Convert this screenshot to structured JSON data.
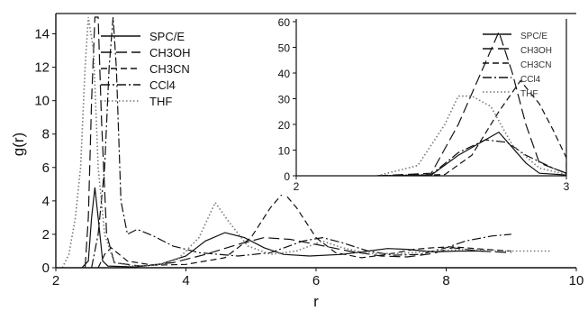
{
  "chart_data": [
    {
      "type": "line",
      "xlabel": "r",
      "ylabel": "g(r)",
      "xlim": [
        2,
        10
      ],
      "ylim": [
        0,
        15
      ],
      "xticks": [
        2,
        4,
        6,
        8,
        10
      ],
      "yticks": [
        0,
        2,
        4,
        6,
        8,
        10,
        12,
        14
      ],
      "legend_position": "top-left",
      "series": [
        {
          "name": "SPC/E",
          "style": "solid",
          "points": [
            [
              2.4,
              0
            ],
            [
              2.5,
              0.4
            ],
            [
              2.55,
              3
            ],
            [
              2.6,
              4.8
            ],
            [
              2.65,
              3
            ],
            [
              2.72,
              0.4
            ],
            [
              2.8,
              0.1
            ],
            [
              3.2,
              0.05
            ],
            [
              3.6,
              0.2
            ],
            [
              4.0,
              0.7
            ],
            [
              4.3,
              1.6
            ],
            [
              4.6,
              2.1
            ],
            [
              4.9,
              1.8
            ],
            [
              5.2,
              1.2
            ],
            [
              5.5,
              0.8
            ],
            [
              5.9,
              0.7
            ],
            [
              6.4,
              0.8
            ],
            [
              6.8,
              1.0
            ],
            [
              7.1,
              1.15
            ],
            [
              7.4,
              1.1
            ],
            [
              7.8,
              0.95
            ],
            [
              8.2,
              1.0
            ],
            [
              8.6,
              1.0
            ]
          ]
        },
        {
          "name": "CH3OH",
          "style": "long-dash",
          "points": [
            [
              2.45,
              0
            ],
            [
              2.5,
              3
            ],
            [
              2.55,
              10
            ],
            [
              2.6,
              15
            ],
            [
              2.65,
              15
            ],
            [
              2.7,
              9
            ],
            [
              2.78,
              2
            ],
            [
              2.9,
              0.3
            ],
            [
              3.3,
              0.1
            ],
            [
              3.8,
              0.3
            ],
            [
              4.3,
              0.8
            ],
            [
              4.8,
              1.4
            ],
            [
              5.2,
              1.8
            ],
            [
              5.6,
              1.7
            ],
            [
              6.0,
              1.4
            ],
            [
              6.5,
              1.0
            ],
            [
              7.0,
              0.7
            ],
            [
              7.4,
              0.65
            ],
            [
              7.8,
              0.85
            ],
            [
              8.1,
              1.2
            ],
            [
              8.5,
              1.0
            ],
            [
              9.0,
              0.9
            ]
          ]
        },
        {
          "name": "CH3CN",
          "style": "dash",
          "points": [
            [
              2.65,
              0
            ],
            [
              2.75,
              0.8
            ],
            [
              2.85,
              1.2
            ],
            [
              3.1,
              0.4
            ],
            [
              3.5,
              0.15
            ],
            [
              4.0,
              0.2
            ],
            [
              4.6,
              0.6
            ],
            [
              5.0,
              1.8
            ],
            [
              5.3,
              3.6
            ],
            [
              5.5,
              4.5
            ],
            [
              5.7,
              3.6
            ],
            [
              6.0,
              1.8
            ],
            [
              6.3,
              0.9
            ],
            [
              6.7,
              0.6
            ],
            [
              7.1,
              0.8
            ],
            [
              7.5,
              1.1
            ],
            [
              7.8,
              1.2
            ],
            [
              8.1,
              1.25
            ],
            [
              8.6,
              1.1
            ],
            [
              9.0,
              1.0
            ]
          ]
        },
        {
          "name": "CCl4",
          "style": "dash-dot",
          "points": [
            [
              2.55,
              0
            ],
            [
              2.65,
              2
            ],
            [
              2.75,
              6
            ],
            [
              2.82,
              12
            ],
            [
              2.88,
              15
            ],
            [
              2.93,
              12
            ],
            [
              3.0,
              4
            ],
            [
              3.1,
              2.0
            ],
            [
              3.25,
              2.3
            ],
            [
              3.5,
              1.9
            ],
            [
              3.8,
              1.3
            ],
            [
              4.2,
              0.9
            ],
            [
              4.8,
              0.7
            ],
            [
              5.3,
              0.9
            ],
            [
              5.8,
              1.6
            ],
            [
              6.1,
              1.8
            ],
            [
              6.4,
              1.5
            ],
            [
              6.8,
              1.0
            ],
            [
              7.2,
              0.75
            ],
            [
              7.6,
              0.8
            ],
            [
              8.0,
              1.2
            ],
            [
              8.3,
              1.6
            ],
            [
              8.7,
              1.9
            ],
            [
              9.0,
              2.0
            ]
          ]
        },
        {
          "name": "THF",
          "style": "dotted",
          "points": [
            [
              2.1,
              0
            ],
            [
              2.2,
              0.8
            ],
            [
              2.3,
              3
            ],
            [
              2.38,
              6
            ],
            [
              2.45,
              12
            ],
            [
              2.5,
              15
            ],
            [
              2.58,
              13
            ],
            [
              2.65,
              6
            ],
            [
              2.75,
              2
            ],
            [
              2.9,
              0.3
            ],
            [
              3.2,
              0.1
            ],
            [
              3.6,
              0.2
            ],
            [
              3.9,
              0.6
            ],
            [
              4.2,
              1.8
            ],
            [
              4.45,
              3.9
            ],
            [
              4.65,
              2.8
            ],
            [
              4.95,
              1.3
            ],
            [
              5.3,
              0.8
            ],
            [
              5.7,
              1.0
            ],
            [
              6.1,
              1.6
            ],
            [
              6.4,
              1.2
            ],
            [
              6.8,
              0.85
            ],
            [
              7.3,
              0.85
            ],
            [
              7.8,
              1.0
            ],
            [
              8.3,
              1.1
            ],
            [
              8.8,
              1.0
            ],
            [
              9.3,
              1.0
            ],
            [
              9.6,
              1.0
            ]
          ]
        }
      ]
    },
    {
      "type": "line",
      "xlabel": "",
      "ylabel": "",
      "xlim": [
        2,
        3
      ],
      "ylim": [
        0,
        60
      ],
      "xticks": [
        2,
        3
      ],
      "yticks": [
        0,
        10,
        20,
        30,
        40,
        50,
        60
      ],
      "legend_position": "top-right",
      "series": [
        {
          "name": "SPC/E",
          "style": "solid",
          "points": [
            [
              2.3,
              0
            ],
            [
              2.5,
              0.3
            ],
            [
              2.6,
              8
            ],
            [
              2.7,
              14
            ],
            [
              2.75,
              17
            ],
            [
              2.8,
              11
            ],
            [
              2.85,
              5
            ],
            [
              2.9,
              1
            ],
            [
              3.0,
              0.3
            ]
          ]
        },
        {
          "name": "CH3OH",
          "style": "long-dash",
          "points": [
            [
              2.3,
              0
            ],
            [
              2.5,
              1
            ],
            [
              2.6,
              20
            ],
            [
              2.7,
              44
            ],
            [
              2.75,
              56
            ],
            [
              2.8,
              40
            ],
            [
              2.85,
              20
            ],
            [
              2.9,
              5
            ],
            [
              3.0,
              1
            ]
          ]
        },
        {
          "name": "CH3CN",
          "style": "dash",
          "points": [
            [
              2.4,
              0
            ],
            [
              2.55,
              0.5
            ],
            [
              2.65,
              8
            ],
            [
              2.75,
              25
            ],
            [
              2.83,
              37
            ],
            [
              2.9,
              28
            ],
            [
              2.95,
              18
            ],
            [
              3.0,
              7
            ],
            [
              3.0,
              2
            ]
          ]
        },
        {
          "name": "CCl4",
          "style": "dash-dot",
          "points": [
            [
              2.3,
              0
            ],
            [
              2.5,
              0.5
            ],
            [
              2.6,
              9
            ],
            [
              2.7,
              14
            ],
            [
              2.78,
              13
            ],
            [
              2.85,
              8
            ],
            [
              2.95,
              3
            ],
            [
              3.0,
              1
            ]
          ]
        },
        {
          "name": "THF",
          "style": "dotted",
          "points": [
            [
              2.3,
              0
            ],
            [
              2.45,
              4
            ],
            [
              2.55,
              20
            ],
            [
              2.6,
              31
            ],
            [
              2.65,
              31
            ],
            [
              2.72,
              27
            ],
            [
              2.8,
              12
            ],
            [
              2.9,
              3
            ],
            [
              3.0,
              0.5
            ]
          ]
        }
      ]
    }
  ]
}
